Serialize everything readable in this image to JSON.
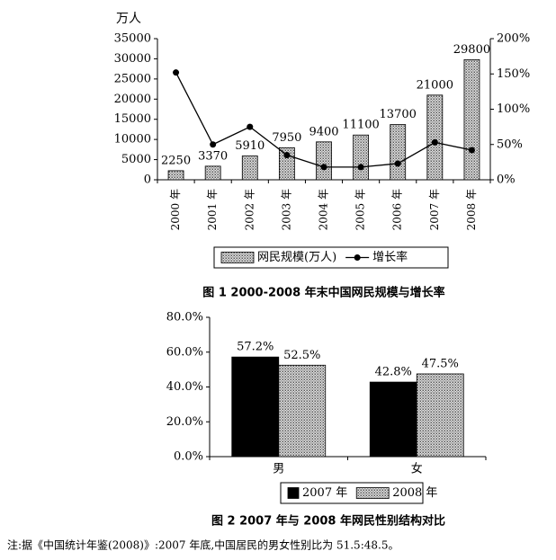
{
  "chart_data": [
    {
      "type": "bar",
      "title": "图 1 2000-2008 年末中国网民规模与增长率",
      "y_label": "万人",
      "categories": [
        "2000 年",
        "2001 年",
        "2002 年",
        "2003 年",
        "2004 年",
        "2005 年",
        "2006 年",
        "2007 年",
        "2008 年"
      ],
      "series": [
        {
          "name": "网民规模(万人)",
          "color": "#9a9a9a",
          "values": [
            2250,
            3370,
            5910,
            7950,
            9400,
            11100,
            13700,
            21000,
            29800
          ]
        },
        {
          "name": "增长率",
          "type": "line",
          "axis": "y2",
          "color": "#000000",
          "values": [
            152,
            50,
            75,
            35,
            18,
            18,
            23,
            53,
            42
          ]
        }
      ],
      "ylim": [
        0,
        35000
      ],
      "yticks": [
        0,
        5000,
        10000,
        15000,
        20000,
        25000,
        30000,
        35000
      ],
      "y2lim": [
        0,
        200
      ],
      "y2ticks": [
        {
          "value": 0,
          "label": "0%"
        },
        {
          "value": 50,
          "label": "50%"
        },
        {
          "value": 100,
          "label": "100%"
        },
        {
          "value": 150,
          "label": "150%"
        },
        {
          "value": 200,
          "label": "200%"
        }
      ],
      "legend": "bottom"
    },
    {
      "type": "bar",
      "title": "图 2 2007 年与 2008 年网民性别结构对比",
      "categories": [
        "男",
        "女"
      ],
      "series": [
        {
          "name": "2007 年",
          "color": "#000000",
          "values": [
            57.2,
            42.8
          ],
          "value_labels": [
            "57.2%",
            "42.8%"
          ]
        },
        {
          "name": "2008 年",
          "color": "#9a9a9a",
          "values": [
            52.5,
            47.5
          ],
          "value_labels": [
            "52.5%",
            "47.5%"
          ]
        }
      ],
      "ylim": [
        0,
        80
      ],
      "yticks": [
        {
          "value": 0,
          "label": "0.0%"
        },
        {
          "value": 20,
          "label": "20.0%"
        },
        {
          "value": 40,
          "label": "40.0%"
        },
        {
          "value": 60,
          "label": "60.0%"
        },
        {
          "value": 80,
          "label": "80.0%"
        }
      ],
      "legend": "bottom"
    }
  ],
  "note": "注:据《中国统计年鉴(2008)》:2007 年底,中国居民的男女性别比为 51.5:48.5。"
}
